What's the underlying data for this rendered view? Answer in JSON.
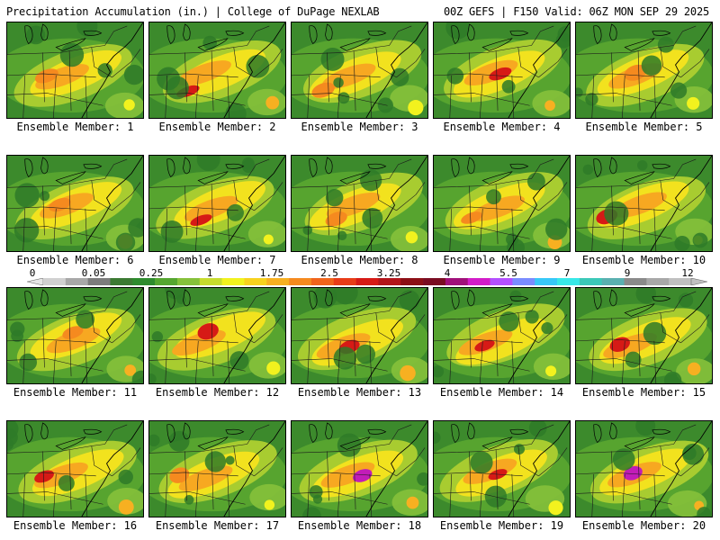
{
  "header": {
    "left_title": "Precipitation Accumulation (in.) | College of DuPage NEXLAB",
    "right_title": "00Z GEFS | F150 Valid: 06Z MON SEP 29 2025"
  },
  "panel_label_prefix": "Ensemble Member: ",
  "members": [
    {
      "id": 1,
      "label": "Ensemble Member: 1",
      "peak": "orange"
    },
    {
      "id": 2,
      "label": "Ensemble Member: 2",
      "peak": "red"
    },
    {
      "id": 3,
      "label": "Ensemble Member: 3",
      "peak": "orange"
    },
    {
      "id": 4,
      "label": "Ensemble Member: 4",
      "peak": "red"
    },
    {
      "id": 5,
      "label": "Ensemble Member: 5",
      "peak": "orange"
    },
    {
      "id": 6,
      "label": "Ensemble Member: 6",
      "peak": "orange"
    },
    {
      "id": 7,
      "label": "Ensemble Member: 7",
      "peak": "red"
    },
    {
      "id": 8,
      "label": "Ensemble Member: 8",
      "peak": "orange"
    },
    {
      "id": 9,
      "label": "Ensemble Member: 9",
      "peak": "orange"
    },
    {
      "id": 10,
      "label": "Ensemble Member: 10",
      "peak": "red"
    },
    {
      "id": 11,
      "label": "Ensemble Member: 11",
      "peak": "orange"
    },
    {
      "id": 12,
      "label": "Ensemble Member: 12",
      "peak": "red"
    },
    {
      "id": 13,
      "label": "Ensemble Member: 13",
      "peak": "red"
    },
    {
      "id": 14,
      "label": "Ensemble Member: 14",
      "peak": "red"
    },
    {
      "id": 15,
      "label": "Ensemble Member: 15",
      "peak": "red"
    },
    {
      "id": 16,
      "label": "Ensemble Member: 16",
      "peak": "red"
    },
    {
      "id": 17,
      "label": "Ensemble Member: 17",
      "peak": "orange"
    },
    {
      "id": 18,
      "label": "Ensemble Member: 18",
      "peak": "magenta"
    },
    {
      "id": 19,
      "label": "Ensemble Member: 19",
      "peak": "red"
    },
    {
      "id": 20,
      "label": "Ensemble Member: 20",
      "peak": "magenta"
    }
  ],
  "colorbar": {
    "labels": [
      "0",
      "0.05",
      "0.25",
      "1",
      "1.75",
      "2.5",
      "3.25",
      "4",
      "5.5",
      "7",
      "9",
      "12"
    ],
    "colors": [
      "#d0d0d0",
      "#a8a8a8",
      "#7c7c7c",
      "#3c7a33",
      "#2e8b2e",
      "#55a630",
      "#86c13b",
      "#c7dc2e",
      "#f2f21e",
      "#f7d21e",
      "#f7b021",
      "#f58a1f",
      "#f0641c",
      "#e83c18",
      "#d61a16",
      "#b3141a",
      "#8c0f16",
      "#7a0c22",
      "#a0107a",
      "#d21cc8",
      "#b450ff",
      "#7a8cff",
      "#38c8f8",
      "#38e8e8",
      "#3cc8b8",
      "#5ab0b0",
      "#8a8a8a",
      "#a8a8a8",
      "#c0c0c0"
    ]
  }
}
